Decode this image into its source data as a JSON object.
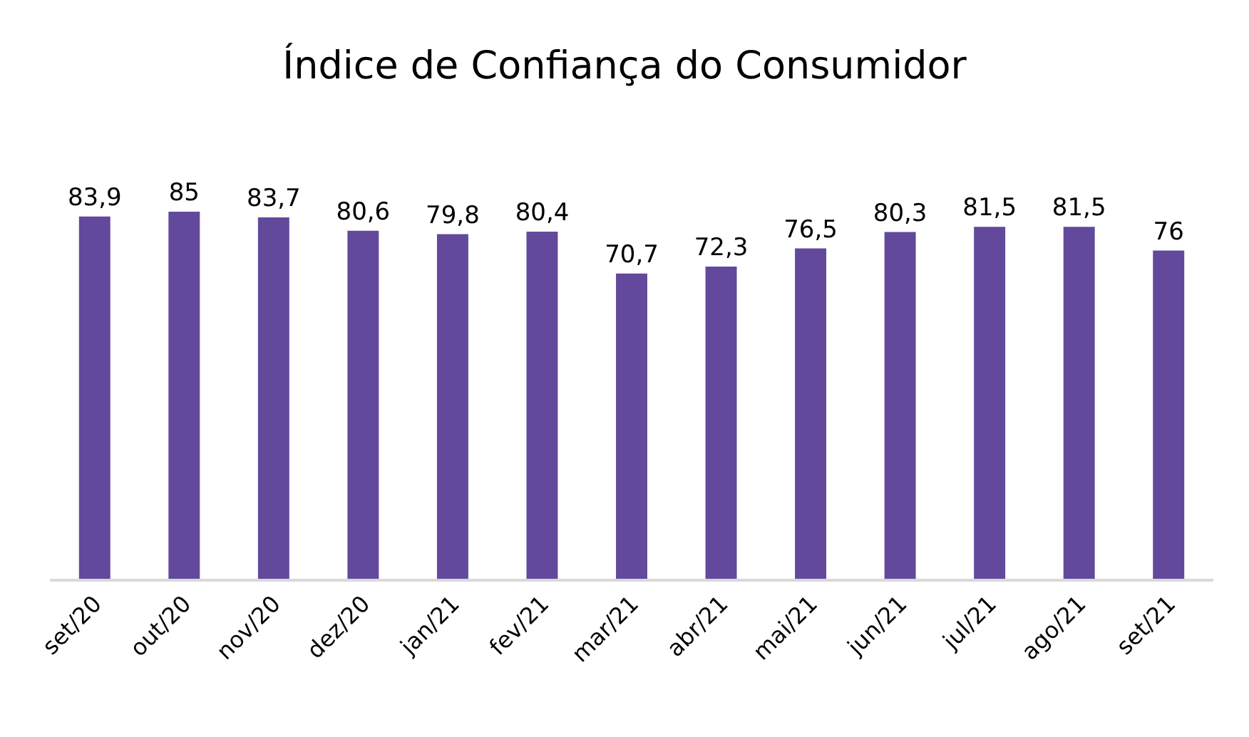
{
  "chart_data": {
    "type": "bar",
    "title": "Índice de Confiança do Consumidor",
    "categories": [
      "set/20",
      "out/20",
      "nov/20",
      "dez/20",
      "jan/21",
      "fev/21",
      "mar/21",
      "abr/21",
      "mai/21",
      "jun/21",
      "jul/21",
      "ago/21",
      "set/21"
    ],
    "values": [
      83.9,
      85,
      83.7,
      80.6,
      79.8,
      80.4,
      70.7,
      72.3,
      76.5,
      80.3,
      81.5,
      81.5,
      76
    ],
    "value_labels": [
      "83,9",
      "85",
      "83,7",
      "80,6",
      "79,8",
      "80,4",
      "70,7",
      "72,3",
      "76,5",
      "80,3",
      "81,5",
      "81,5",
      "76"
    ],
    "color": "#62499c"
  }
}
